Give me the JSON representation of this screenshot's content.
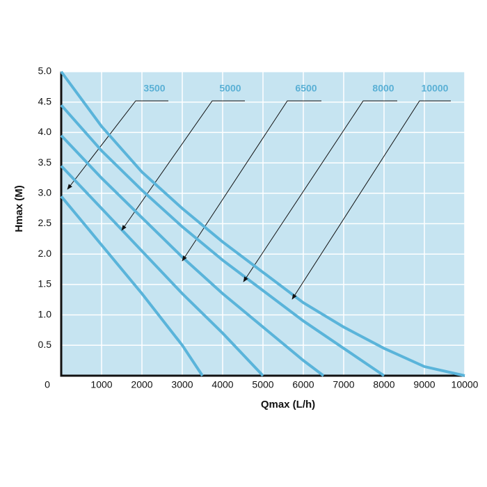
{
  "chart_data": {
    "type": "line",
    "xlabel": "Qmax (L/h)",
    "ylabel": "Hmax (M)",
    "xlim": [
      0,
      10000
    ],
    "ylim": [
      0,
      5
    ],
    "xticks": [
      0,
      1000,
      2000,
      3000,
      4000,
      5000,
      6000,
      7000,
      8000,
      9000,
      10000
    ],
    "yticks": [
      0.5,
      {
        "value": 1,
        "label": "1.0"
      },
      1.5,
      {
        "value": 2,
        "label": "2.0"
      },
      2.5,
      {
        "value": 3,
        "label": "3.0"
      },
      3.5,
      {
        "value": 4,
        "label": "4.0"
      },
      4.5,
      {
        "value": 5,
        "label": "5.0"
      }
    ],
    "grid": true,
    "background": "#c6e4f1",
    "grid_color": "#ffffff",
    "series": [
      {
        "name": "3500",
        "color": "#5ab4da",
        "x": [
          0,
          1000,
          2000,
          3000,
          3500
        ],
        "values": [
          2.95,
          2.15,
          1.35,
          0.5,
          0
        ]
      },
      {
        "name": "5000",
        "color": "#5ab4da",
        "x": [
          0,
          1000,
          2000,
          3000,
          4000,
          5000
        ],
        "values": [
          3.45,
          2.75,
          2.05,
          1.35,
          0.7,
          0
        ]
      },
      {
        "name": "6500",
        "color": "#5ab4da",
        "x": [
          0,
          1000,
          2000,
          3000,
          4000,
          5000,
          6000,
          6500
        ],
        "values": [
          3.95,
          3.25,
          2.6,
          1.95,
          1.35,
          0.8,
          0.25,
          0
        ]
      },
      {
        "name": "8000",
        "color": "#5ab4da",
        "x": [
          0,
          1000,
          2000,
          3000,
          4000,
          5000,
          6000,
          7000,
          8000
        ],
        "values": [
          4.45,
          3.7,
          3.05,
          2.45,
          1.9,
          1.4,
          0.9,
          0.45,
          0
        ]
      },
      {
        "name": "10000",
        "color": "#5ab4da",
        "x": [
          0,
          1000,
          2000,
          3000,
          4000,
          5000,
          6000,
          7000,
          8000,
          9000,
          10000
        ],
        "values": [
          5.0,
          4.1,
          3.35,
          2.75,
          2.2,
          1.7,
          1.2,
          0.8,
          0.45,
          0.15,
          0
        ]
      }
    ]
  }
}
